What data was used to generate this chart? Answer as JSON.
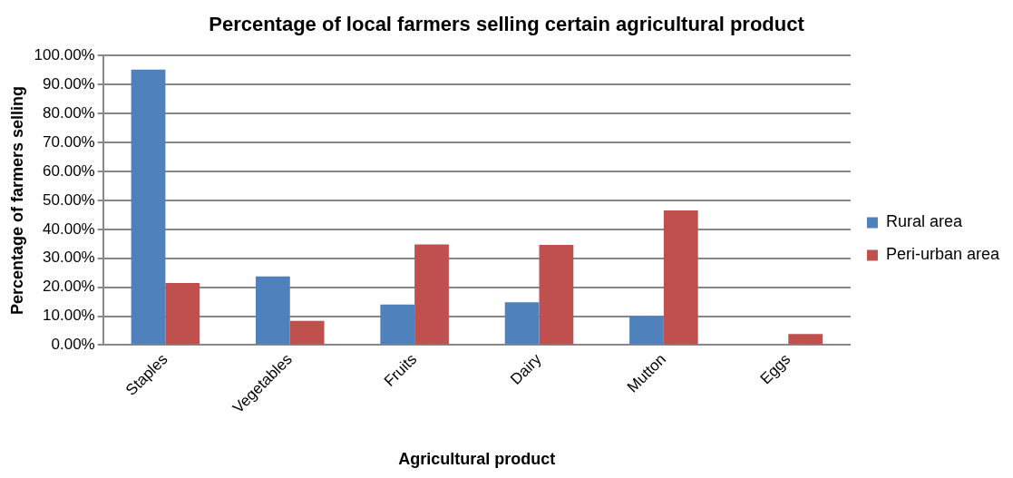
{
  "chart_data": {
    "type": "bar",
    "title": "Percentage of local farmers selling certain agricultural product",
    "xlabel": "Agricultural product",
    "ylabel": "Percentage of farmers selling",
    "categories": [
      "Staples",
      "Vegetables",
      "Fruits",
      "Dairy",
      "Mutton",
      "Eggs"
    ],
    "series": [
      {
        "name": "Rural area",
        "color": "#4f81bd",
        "values": [
          95.2,
          23.7,
          14.0,
          14.8,
          10.0,
          0
        ]
      },
      {
        "name": "Peri-urban area",
        "color": "#c0504d",
        "values": [
          21.5,
          8.4,
          34.8,
          34.6,
          46.5,
          3.8
        ]
      }
    ],
    "ylim": [
      0,
      100
    ],
    "yticks": [
      {
        "value": 0,
        "label": "0.00%"
      },
      {
        "value": 10,
        "label": "10.00%"
      },
      {
        "value": 20,
        "label": "20.00%"
      },
      {
        "value": 30,
        "label": "30.00%"
      },
      {
        "value": 40,
        "label": "40.00%"
      },
      {
        "value": 50,
        "label": "50.00%"
      },
      {
        "value": 60,
        "label": "60.00%"
      },
      {
        "value": 70,
        "label": "70.00%"
      },
      {
        "value": 80,
        "label": "80.00%"
      },
      {
        "value": 90,
        "label": "90.00%"
      },
      {
        "value": 100,
        "label": "100.00%"
      }
    ],
    "grid": "y",
    "legend": "right"
  }
}
